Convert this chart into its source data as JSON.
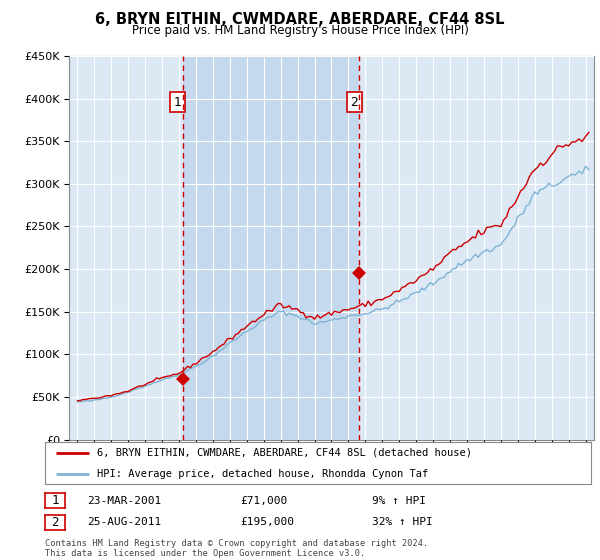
{
  "title": "6, BRYN EITHIN, CWMDARE, ABERDARE, CF44 8SL",
  "subtitle": "Price paid vs. HM Land Registry's House Price Index (HPI)",
  "legend_line1": "6, BRYN EITHIN, CWMDARE, ABERDARE, CF44 8SL (detached house)",
  "legend_line2": "HPI: Average price, detached house, Rhondda Cynon Taf",
  "footnote": "Contains HM Land Registry data © Crown copyright and database right 2024.\nThis data is licensed under the Open Government Licence v3.0.",
  "transaction1": {
    "label": "1",
    "date": "23-MAR-2001",
    "price": "£71,000",
    "hpi": "9% ↑ HPI",
    "year": 2001.22,
    "value": 71000
  },
  "transaction2": {
    "label": "2",
    "date": "25-AUG-2011",
    "price": "£195,000",
    "hpi": "32% ↑ HPI",
    "year": 2011.65,
    "value": 195000
  },
  "ylim": [
    0,
    450000
  ],
  "xlim_start": 1994.5,
  "xlim_end": 2025.5,
  "plot_bg": "#dce9f5",
  "fig_bg": "#ffffff",
  "red_line_color": "#cc0000",
  "blue_line_color": "#7fb3d3",
  "vline_color": "#cc0000",
  "highlight_color": "#c5d9ee",
  "grid_color": "#ffffff",
  "label_box_color": "#cc0000"
}
